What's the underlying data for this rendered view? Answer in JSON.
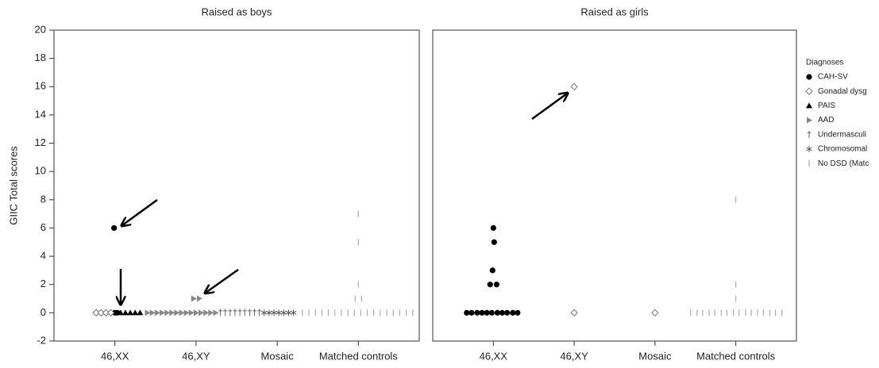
{
  "chart_data": [
    {
      "type": "scatter",
      "title": "Raised as boys",
      "y_label": "GIIC Total scores",
      "xlim": [
        0.25,
        4.75
      ],
      "ylim": [
        -2,
        20
      ],
      "xticks": [
        {
          "value": 1,
          "label": "46,XX"
        },
        {
          "value": 2,
          "label": "46,XY"
        },
        {
          "value": 3,
          "label": "Mosaic"
        },
        {
          "value": 4,
          "label": "Matched controls"
        }
      ],
      "yticks": [
        -2,
        0,
        2,
        4,
        6,
        8,
        10,
        12,
        14,
        16,
        18,
        20
      ],
      "series": [
        {
          "color": "#000000",
          "marker": "circle",
          "x": [
            0.99,
            1.0,
            1.03
          ],
          "values": [
            6,
            0,
            0
          ]
        },
        {
          "color": "#777777",
          "marker": "diamond",
          "x": [
            0.77,
            0.83,
            0.89,
            0.95
          ],
          "values": [
            0,
            0,
            0,
            0
          ]
        },
        {
          "color": "#000000",
          "marker": "triangle",
          "x": [
            1.07,
            1.13,
            1.19,
            1.25,
            1.31
          ],
          "values": [
            0,
            0,
            0,
            0,
            0
          ]
        },
        {
          "color": "#888888",
          "marker": "triangle-right",
          "x": [
            1.4,
            1.46,
            1.52,
            1.58,
            1.64,
            1.7,
            1.76,
            1.82,
            1.88,
            1.94,
            2.0,
            2.06,
            2.12,
            2.18,
            2.24,
            1.97,
            2.04
          ],
          "values": [
            0,
            0,
            0,
            0,
            0,
            0,
            0,
            0,
            0,
            0,
            0,
            0,
            0,
            0,
            0,
            1,
            1
          ]
        },
        {
          "color": "#666666",
          "marker": "dagger",
          "x": [
            2.3,
            2.36,
            2.42,
            2.48,
            2.54,
            2.6,
            2.66,
            2.72,
            2.78
          ],
          "values": [
            0,
            0,
            0,
            0,
            0,
            0,
            0,
            0,
            0
          ]
        },
        {
          "color": "#555555",
          "marker": "star",
          "x": [
            2.84,
            2.9,
            2.96,
            3.02,
            3.08,
            3.14,
            3.2
          ],
          "values": [
            0,
            0,
            0,
            0,
            0,
            0,
            0
          ]
        },
        {
          "color": "#aaaaaa",
          "marker": "vline",
          "x": [
            3.31,
            3.39,
            3.47,
            3.55,
            3.63,
            3.71,
            3.79,
            3.87,
            3.95,
            4.03,
            4.11,
            4.19,
            4.27,
            4.35,
            4.43,
            4.51,
            4.59,
            4.67,
            3.96,
            4.04,
            4.0,
            4.0,
            4.0
          ],
          "values": [
            0,
            0,
            0,
            0,
            0,
            0,
            0,
            0,
            0,
            0,
            0,
            0,
            0,
            0,
            0,
            0,
            0,
            0,
            1,
            1,
            2,
            5,
            7
          ]
        }
      ]
    },
    {
      "type": "scatter",
      "title": "Raised as girls",
      "legend": "right",
      "legend_title": "Diagnoses",
      "xlim": [
        0.25,
        4.75
      ],
      "ylim": [
        -2,
        20
      ],
      "xticks": [
        {
          "value": 1,
          "label": "46,XX"
        },
        {
          "value": 2,
          "label": "46,XY"
        },
        {
          "value": 3,
          "label": "Mosaic"
        },
        {
          "value": 4,
          "label": "Matched controls"
        }
      ],
      "series": [
        {
          "name": "CAH-SV",
          "color": "#000000",
          "marker": "circle",
          "x": [
            0.67,
            0.73,
            0.8,
            0.86,
            0.92,
            0.98,
            1.05,
            1.11,
            1.17,
            1.24,
            1.3,
            0.96,
            1.04,
            0.99,
            1.01,
            1.0
          ],
          "values": [
            0,
            0,
            0,
            0,
            0,
            0,
            0,
            0,
            0,
            0,
            0,
            2,
            2,
            3,
            5,
            6
          ]
        },
        {
          "name": "Gonadal dysg",
          "color": "#777777",
          "marker": "diamond",
          "x": [
            2,
            2,
            3
          ],
          "values": [
            16,
            0,
            0
          ]
        },
        {
          "name": "PAIS",
          "color": "#000000",
          "marker": "triangle",
          "x": [],
          "values": []
        },
        {
          "name": "AAD",
          "color": "#888888",
          "marker": "triangle-right",
          "x": [],
          "values": []
        },
        {
          "name": "Undermasculi",
          "color": "#666666",
          "marker": "dagger",
          "x": [],
          "values": []
        },
        {
          "name": "Chromosomal",
          "color": "#555555",
          "marker": "star",
          "x": [],
          "values": []
        },
        {
          "name": "No DSD (Matc",
          "color": "#aaaaaa",
          "marker": "vline",
          "x": [
            3.44,
            3.52,
            3.59,
            3.67,
            3.74,
            3.82,
            3.89,
            3.97,
            4.04,
            4.12,
            4.19,
            4.27,
            4.34,
            4.42,
            4.49,
            4.57,
            4.0,
            4.0,
            4.0
          ],
          "values": [
            0,
            0,
            0,
            0,
            0,
            0,
            0,
            0,
            0,
            0,
            0,
            0,
            0,
            0,
            0,
            0,
            1,
            2,
            8
          ]
        }
      ]
    }
  ]
}
